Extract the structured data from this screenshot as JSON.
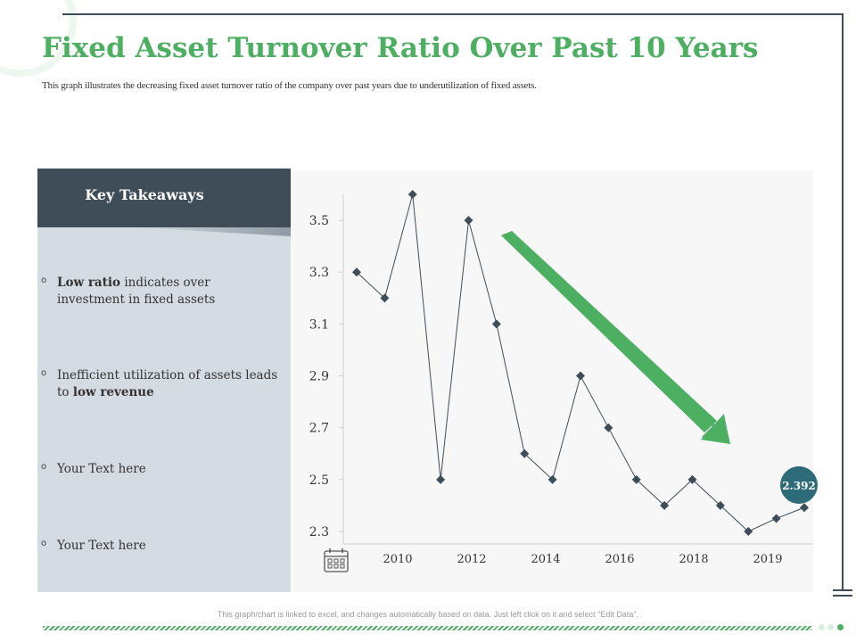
{
  "title": "Fixed Asset Turnover Ratio Over Past 10 Years",
  "subtitle": "This graph illustrates the decreasing fixed asset turnover ratio of the company over past years due to underutilization of fixed assets.",
  "panel": {
    "heading": "Key Takeaways",
    "items": [
      {
        "bold": "Low ratio",
        "text": " indicates over investment in fixed assets"
      },
      {
        "text": "Inefficient utilization of assets leads to ",
        "bold": "low revenue"
      },
      {
        "text": "Your Text here"
      },
      {
        "text": "Your Text here"
      }
    ]
  },
  "footer": "This graph/chart is linked to excel, and changes automatically based on data. Just left click on it and select \"Edit Data\".",
  "colors": {
    "accent_green": "#4caf61",
    "dark_slate": "#3f4d58",
    "panel_bg": "#d4dbe3",
    "line": "#3f4d58",
    "callout": "#2e6b79"
  },
  "icons": {
    "calendar": "calendar-icon",
    "trend_arrow": "down-trend-arrow-icon"
  },
  "chart_data": {
    "type": "line",
    "title": "",
    "xlabel": "",
    "ylabel": "",
    "ylim": [
      2.3,
      3.6
    ],
    "yticks": [
      "3.5",
      "3.3",
      "3.1",
      "2.9",
      "2.7",
      "2.5",
      "2.3"
    ],
    "xticks": [
      "2010",
      "2012",
      "2014",
      "2016",
      "2018",
      "2019"
    ],
    "series": [
      {
        "values": [
          3.3,
          3.2,
          3.6,
          2.5,
          3.5,
          3.1,
          2.6,
          2.5,
          2.9,
          2.7,
          2.5,
          2.4,
          2.5,
          2.4,
          2.3,
          2.35,
          2.392
        ]
      }
    ],
    "callout": "2.392",
    "trend": "decreasing",
    "grid": false,
    "legend": "none"
  }
}
